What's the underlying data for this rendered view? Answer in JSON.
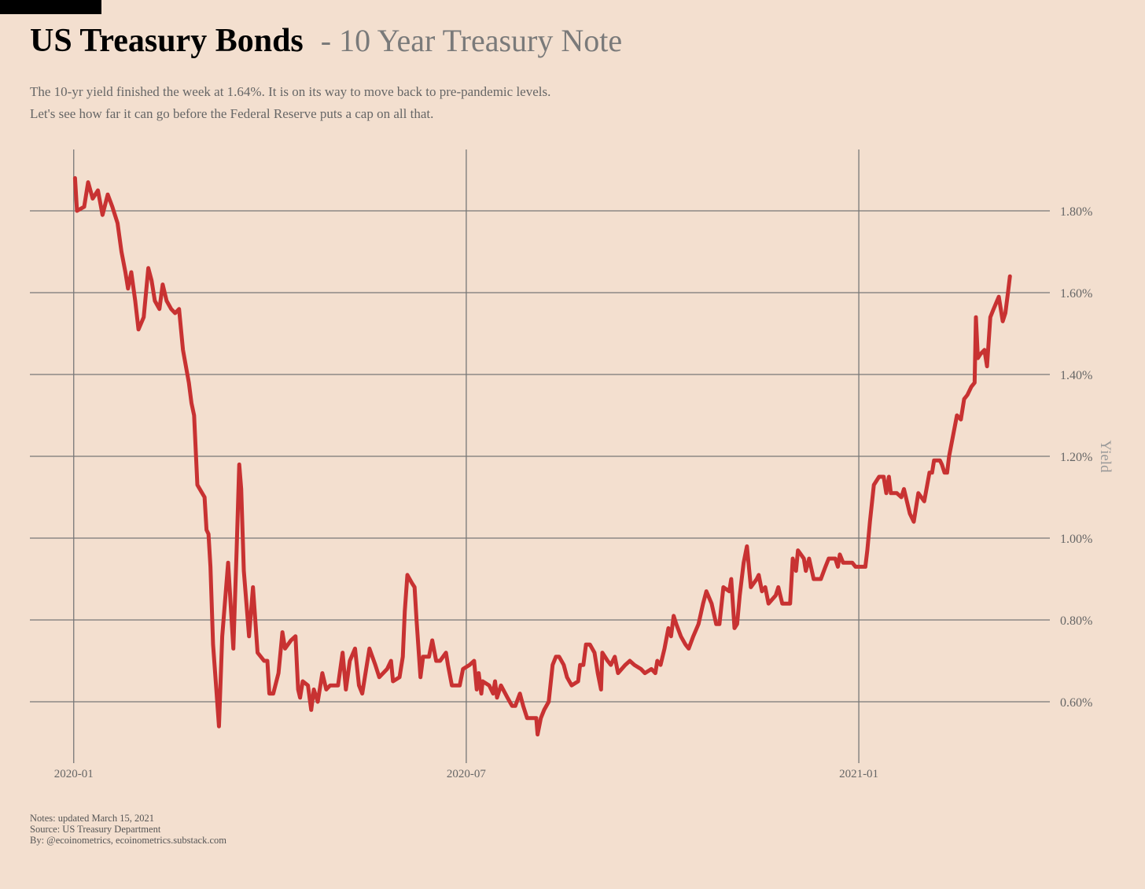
{
  "chart_data": {
    "type": "line",
    "title": "US Treasury Bonds",
    "subtitle": "- 10 Year Treasury Note",
    "description": [
      "The 10-yr yield finished the week at 1.64%. It is on its way to move back to pre-pandemic levels.",
      "Let's see how far it can go before the Federal Reserve puts a cap on all that."
    ],
    "y_label": "Yield",
    "notes": [
      "Notes: updated March 15, 2021",
      "Source: US Treasury Department",
      "By: @ecoinometrics, ecoinometrics.substack.com"
    ],
    "color": "#c83232",
    "grid": true,
    "xlim": [
      -0.67,
      14.92
    ],
    "xticks": [
      {
        "value": 0,
        "label": "2020-01"
      },
      {
        "value": 6,
        "label": "2020-07"
      },
      {
        "value": 12,
        "label": "2021-01"
      }
    ],
    "ylim": [
      0.45,
      1.95
    ],
    "yticks": [
      {
        "value": 0.6,
        "label": "0.60%"
      },
      {
        "value": 0.8,
        "label": "0.80%"
      },
      {
        "value": 1.0,
        "label": "1.00%"
      },
      {
        "value": 1.2,
        "label": "1.20%"
      },
      {
        "value": 1.4,
        "label": "1.40%"
      },
      {
        "value": 1.6,
        "label": "1.60%"
      },
      {
        "value": 1.8,
        "label": "1.80%"
      }
    ],
    "x": [
      0.02,
      0.05,
      0.16,
      0.22,
      0.29,
      0.37,
      0.44,
      0.52,
      0.59,
      0.67,
      0.73,
      0.79,
      0.83,
      0.88,
      0.94,
      0.99,
      1.07,
      1.14,
      1.19,
      1.24,
      1.31,
      1.36,
      1.42,
      1.49,
      1.55,
      1.61,
      1.67,
      1.76,
      1.8,
      1.84,
      1.89,
      2.0,
      2.03,
      2.06,
      2.09,
      2.13,
      2.18,
      2.22,
      2.27,
      2.36,
      2.44,
      2.49,
      2.53,
      2.56,
      2.6,
      2.68,
      2.74,
      2.81,
      2.91,
      2.96,
      2.99,
      3.05,
      3.13,
      3.19,
      3.23,
      3.32,
      3.39,
      3.43,
      3.46,
      3.5,
      3.58,
      3.63,
      3.67,
      3.73,
      3.8,
      3.86,
      3.92,
      4.04,
      4.11,
      4.16,
      4.22,
      4.3,
      4.36,
      4.41,
      4.47,
      4.52,
      4.61,
      4.67,
      4.79,
      4.85,
      4.88,
      4.98,
      5.03,
      5.06,
      5.1,
      5.17,
      5.21,
      5.24,
      5.3,
      5.34,
      5.43,
      5.48,
      5.54,
      5.6,
      5.69,
      5.72,
      5.78,
      5.9,
      5.95,
      6.05,
      6.12,
      6.16,
      6.19,
      6.23,
      6.25,
      6.35,
      6.41,
      6.44,
      6.47,
      6.53,
      6.63,
      6.7,
      6.75,
      6.82,
      6.87,
      6.93,
      7.0,
      7.07,
      7.09,
      7.14,
      7.19,
      7.26,
      7.32,
      7.37,
      7.42,
      7.49,
      7.54,
      7.61,
      7.71,
      7.74,
      7.79,
      7.83,
      7.89,
      7.96,
      8.01,
      8.06,
      8.08,
      8.16,
      8.21,
      8.27,
      8.32,
      8.43,
      8.5,
      8.57,
      8.67,
      8.73,
      8.83,
      8.89,
      8.92,
      8.97,
      9.03,
      9.09,
      9.13,
      9.17,
      9.21,
      9.28,
      9.35,
      9.4,
      9.47,
      9.55,
      9.62,
      9.67,
      9.75,
      9.82,
      9.87,
      9.93,
      10.02,
      10.05,
      10.1,
      10.14,
      10.18,
      10.24,
      10.29,
      10.35,
      10.44,
      10.47,
      10.52,
      10.57,
      10.62,
      10.73,
      10.77,
      10.83,
      10.95,
      10.99,
      11.04,
      11.07,
      11.16,
      11.19,
      11.24,
      11.31,
      11.42,
      11.49,
      11.54,
      11.64,
      11.68,
      11.71,
      11.76,
      11.9,
      11.95,
      12.1,
      12.13,
      12.17,
      12.23,
      12.31,
      12.38,
      12.42,
      12.46,
      12.49,
      12.58,
      12.65,
      12.69,
      12.78,
      12.84,
      12.91,
      13.0,
      13.08,
      13.12,
      13.15,
      13.24,
      13.27,
      13.31,
      13.35,
      13.38,
      13.44,
      13.5,
      13.56,
      13.61,
      13.66,
      13.72,
      13.77,
      13.79,
      13.82,
      13.86,
      13.92,
      13.96,
      14.01,
      14.06,
      14.14,
      14.2,
      14.24,
      14.28,
      14.31
    ],
    "values": [
      1.88,
      1.8,
      1.81,
      1.87,
      1.83,
      1.85,
      1.79,
      1.84,
      1.81,
      1.77,
      1.7,
      1.65,
      1.61,
      1.65,
      1.58,
      1.51,
      1.54,
      1.66,
      1.63,
      1.58,
      1.56,
      1.62,
      1.58,
      1.56,
      1.55,
      1.56,
      1.46,
      1.38,
      1.33,
      1.3,
      1.13,
      1.1,
      1.02,
      1.01,
      0.93,
      0.74,
      0.63,
      0.54,
      0.76,
      0.94,
      0.73,
      0.97,
      1.18,
      1.12,
      0.92,
      0.76,
      0.88,
      0.72,
      0.7,
      0.7,
      0.62,
      0.62,
      0.67,
      0.77,
      0.73,
      0.75,
      0.76,
      0.63,
      0.61,
      0.65,
      0.64,
      0.58,
      0.63,
      0.6,
      0.67,
      0.63,
      0.64,
      0.64,
      0.72,
      0.63,
      0.7,
      0.73,
      0.64,
      0.62,
      0.68,
      0.73,
      0.69,
      0.66,
      0.68,
      0.7,
      0.65,
      0.66,
      0.71,
      0.82,
      0.91,
      0.89,
      0.88,
      0.8,
      0.66,
      0.71,
      0.71,
      0.75,
      0.7,
      0.7,
      0.72,
      0.69,
      0.64,
      0.64,
      0.68,
      0.69,
      0.7,
      0.63,
      0.67,
      0.62,
      0.65,
      0.64,
      0.62,
      0.65,
      0.61,
      0.64,
      0.61,
      0.59,
      0.59,
      0.62,
      0.59,
      0.56,
      0.56,
      0.56,
      0.52,
      0.56,
      0.58,
      0.6,
      0.69,
      0.71,
      0.71,
      0.69,
      0.66,
      0.64,
      0.65,
      0.69,
      0.69,
      0.74,
      0.74,
      0.72,
      0.67,
      0.63,
      0.72,
      0.7,
      0.69,
      0.71,
      0.67,
      0.69,
      0.7,
      0.69,
      0.68,
      0.67,
      0.68,
      0.67,
      0.7,
      0.69,
      0.73,
      0.78,
      0.76,
      0.81,
      0.79,
      0.76,
      0.74,
      0.73,
      0.76,
      0.79,
      0.84,
      0.87,
      0.84,
      0.79,
      0.79,
      0.88,
      0.87,
      0.9,
      0.78,
      0.79,
      0.86,
      0.94,
      0.98,
      0.88,
      0.9,
      0.91,
      0.87,
      0.88,
      0.84,
      0.86,
      0.88,
      0.84,
      0.84,
      0.95,
      0.92,
      0.97,
      0.95,
      0.92,
      0.95,
      0.9,
      0.9,
      0.93,
      0.95,
      0.95,
      0.93,
      0.96,
      0.94,
      0.94,
      0.93,
      0.93,
      0.97,
      1.04,
      1.13,
      1.15,
      1.15,
      1.11,
      1.15,
      1.11,
      1.11,
      1.1,
      1.12,
      1.06,
      1.04,
      1.11,
      1.09,
      1.16,
      1.16,
      1.19,
      1.19,
      1.18,
      1.16,
      1.16,
      1.2,
      1.25,
      1.3,
      1.29,
      1.34,
      1.35,
      1.37,
      1.38,
      1.54,
      1.44,
      1.45,
      1.46,
      1.42,
      1.54,
      1.56,
      1.59,
      1.53,
      1.55,
      1.6,
      1.64
    ]
  }
}
